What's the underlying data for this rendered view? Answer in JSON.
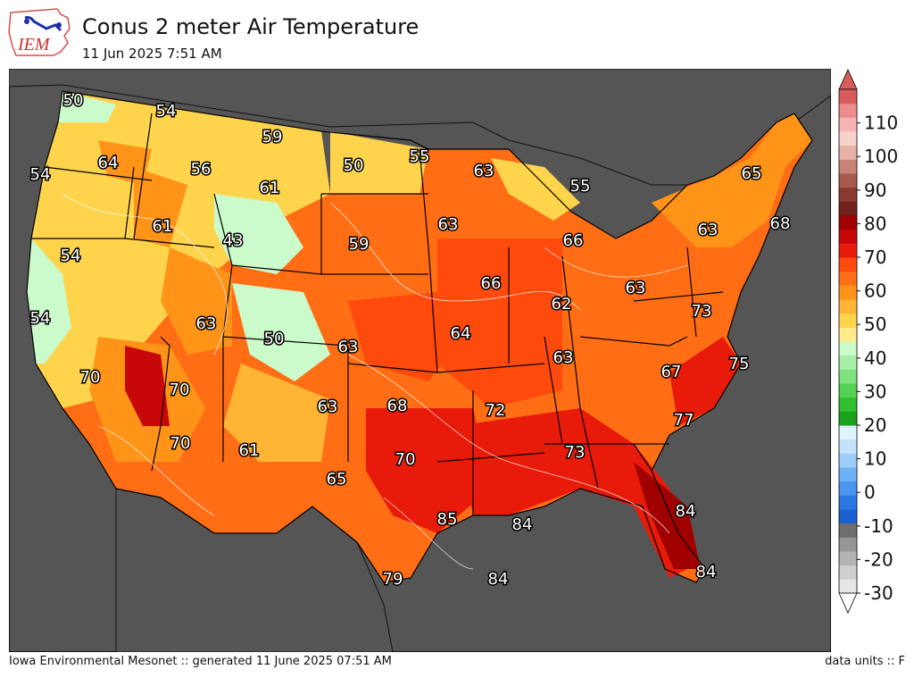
{
  "header": {
    "title": "Conus 2 meter Air Temperature",
    "subtitle": "11 Jun 2025 7:51 AM",
    "logo_text": "IEM"
  },
  "footer": {
    "credit": "Iowa Environmental Mesonet :: generated 11 June 2025 07:51 AM",
    "units": "data units :: F"
  },
  "colorbar": {
    "tick_labels": [
      "110",
      "100",
      "90",
      "80",
      "70",
      "60",
      "50",
      "40",
      "30",
      "20",
      "10",
      "0",
      "-10",
      "-20",
      "-30"
    ],
    "range": [
      -30,
      120
    ],
    "colors": [
      "#e6e6e6",
      "#cfcfcf",
      "#b4b4b4",
      "#969696",
      "#6e6e6e",
      "#1c5fd1",
      "#2b78e4",
      "#4a95ee",
      "#6fb1f5",
      "#9ccdf9",
      "#c2e3fb",
      "#e1f4fd",
      "#19a119",
      "#2fbf2f",
      "#53d153",
      "#7ee27e",
      "#a6efa6",
      "#cbfacb",
      "#ffeb8a",
      "#ffd44d",
      "#ffb533",
      "#ff9419",
      "#ff6e14",
      "#ff4a0d",
      "#e81b0a",
      "#c80808",
      "#a00000",
      "#70241c",
      "#8b3a30",
      "#a85a4e",
      "#c88276",
      "#e6b2a8",
      "#f5d2ca",
      "#f6b4b4",
      "#ec8c8c",
      "#d95c5c"
    ]
  },
  "map_labels": [
    {
      "text": "50",
      "value": 50
    },
    {
      "text": "54",
      "value": 54
    },
    {
      "text": "54",
      "value": 54
    },
    {
      "text": "64",
      "value": 64
    },
    {
      "text": "59",
      "value": 59
    },
    {
      "text": "56",
      "value": 56
    },
    {
      "text": "61",
      "value": 61
    },
    {
      "text": "50",
      "value": 50
    },
    {
      "text": "55",
      "value": 55
    },
    {
      "text": "63",
      "value": 63
    },
    {
      "text": "55",
      "value": 55
    },
    {
      "text": "65",
      "value": 65
    },
    {
      "text": "54",
      "value": 54
    },
    {
      "text": "61",
      "value": 61
    },
    {
      "text": "43",
      "value": 43
    },
    {
      "text": "59",
      "value": 59
    },
    {
      "text": "63",
      "value": 63
    },
    {
      "text": "66",
      "value": 66
    },
    {
      "text": "63",
      "value": 63
    },
    {
      "text": "68",
      "value": 68
    },
    {
      "text": "54",
      "value": 54
    },
    {
      "text": "63",
      "value": 63
    },
    {
      "text": "66",
      "value": 66
    },
    {
      "text": "62",
      "value": 62
    },
    {
      "text": "63",
      "value": 63
    },
    {
      "text": "73",
      "value": 73
    },
    {
      "text": "50",
      "value": 50
    },
    {
      "text": "63",
      "value": 63
    },
    {
      "text": "64",
      "value": 64
    },
    {
      "text": "70",
      "value": 70
    },
    {
      "text": "70",
      "value": 70
    },
    {
      "text": "63",
      "value": 63
    },
    {
      "text": "75",
      "value": 75
    },
    {
      "text": "67",
      "value": 67
    },
    {
      "text": "63",
      "value": 63
    },
    {
      "text": "68",
      "value": 68
    },
    {
      "text": "72",
      "value": 72
    },
    {
      "text": "77",
      "value": 77
    },
    {
      "text": "70",
      "value": 70
    },
    {
      "text": "61",
      "value": 61
    },
    {
      "text": "73",
      "value": 73
    },
    {
      "text": "70",
      "value": 70
    },
    {
      "text": "65",
      "value": 65
    },
    {
      "text": "85",
      "value": 85
    },
    {
      "text": "84",
      "value": 84
    },
    {
      "text": "84",
      "value": 84
    },
    {
      "text": "84",
      "value": 84
    },
    {
      "text": "79",
      "value": 79
    },
    {
      "text": "84",
      "value": 84
    }
  ]
}
